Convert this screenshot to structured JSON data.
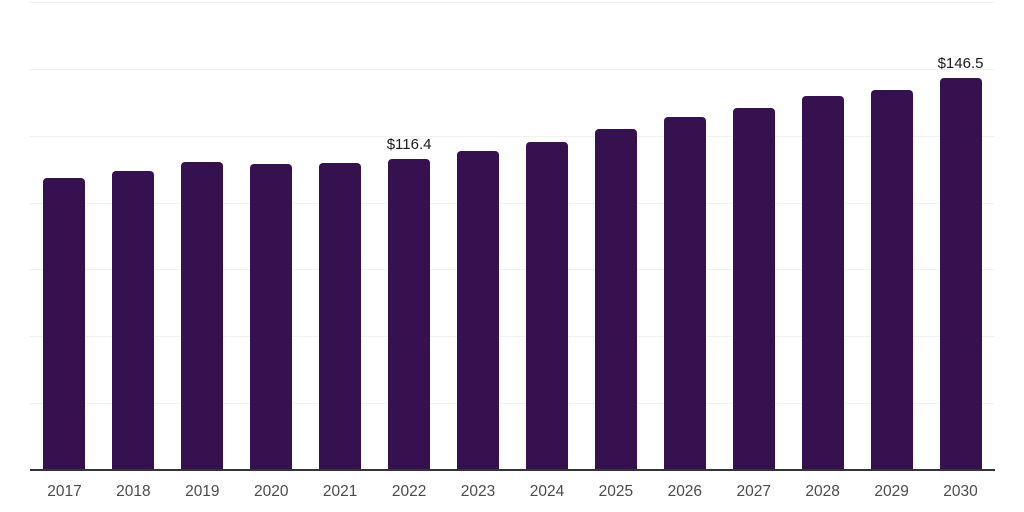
{
  "chart_data": {
    "type": "bar",
    "title": "",
    "xlabel": "",
    "ylabel": "",
    "categories": [
      "2017",
      "2018",
      "2019",
      "2020",
      "2021",
      "2022",
      "2023",
      "2024",
      "2025",
      "2026",
      "2027",
      "2028",
      "2029",
      "2030"
    ],
    "values": [
      109.2,
      111.9,
      115.2,
      114.5,
      114.8,
      116.4,
      119.3,
      122.7,
      127.5,
      132.0,
      135.4,
      139.9,
      142.1,
      146.5
    ],
    "data_labels": {
      "2022": "$116.4",
      "2030": "$146.5"
    },
    "ylim": [
      0,
      175
    ],
    "grid_step": 25,
    "grid": "horizontal-only",
    "legend": "none",
    "y_axis_tick_labels": "none",
    "colors": {
      "bar": "#35114F",
      "gridline": "#f1f1f3",
      "axis_line": "#333338",
      "tick_label": "#4b4b4b",
      "data_label": "#1a1a1a",
      "background": "#ffffff"
    }
  }
}
